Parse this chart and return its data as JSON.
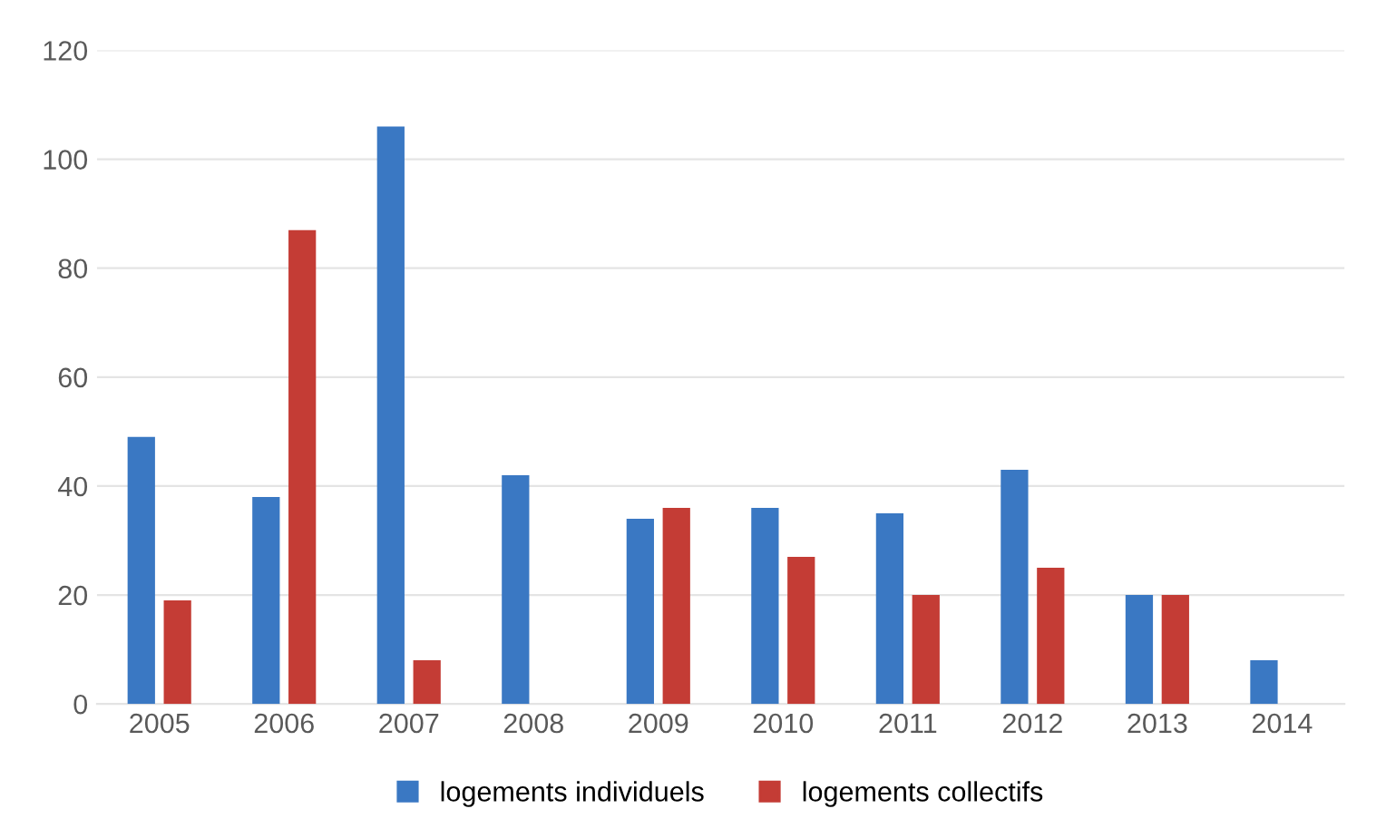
{
  "chart_data": {
    "type": "bar",
    "categories": [
      "2005",
      "2006",
      "2007",
      "2008",
      "2009",
      "2010",
      "2011",
      "2012",
      "2013",
      "2014"
    ],
    "series": [
      {
        "name": "logements individuels",
        "color": "#3a78c3",
        "values": [
          49,
          38,
          106,
          42,
          34,
          36,
          35,
          43,
          20,
          8
        ]
      },
      {
        "name": "logements collectifs",
        "color": "#c43c35",
        "values": [
          19,
          87,
          8,
          null,
          36,
          27,
          20,
          25,
          20,
          null
        ]
      }
    ],
    "ylim": [
      0,
      120
    ],
    "yticks": [
      0,
      20,
      40,
      60,
      80,
      100,
      120
    ],
    "grid": "y",
    "legend": "bottom"
  }
}
